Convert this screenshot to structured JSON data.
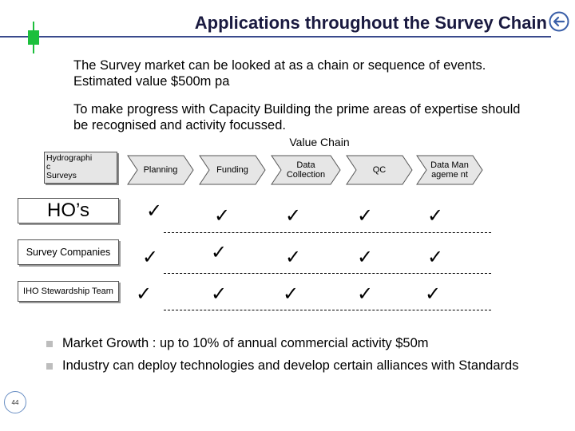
{
  "header": {
    "title": "Applications throughout the Survey Chain",
    "back_icon": "back-arrow-icon"
  },
  "intro": {
    "paragraph_1": "The Survey market can be looked at as a chain or sequence of events.  Estimated value $500m pa",
    "paragraph_2": "To make progress with Capacity Building the prime areas of expertise should be recognised and activity focussed."
  },
  "value_chain": {
    "label": "Value Chain",
    "source_box": "Hydrographi\nc\nSurveys",
    "stages": [
      "Planning",
      "Funding",
      "Data Collection",
      "QC",
      "Data Manageme nt"
    ]
  },
  "rows": [
    {
      "label": "HO’s",
      "ticks": "✓"
    },
    {
      "label": "Survey Companies",
      "ticks": "✓"
    },
    {
      "label": "IHO Stewardship Team",
      "ticks": "✓"
    }
  ],
  "bullets": [
    "Market Growth : up to 10% of annual commercial activity  $50m",
    "Industry can deploy technologies and develop certain alliances with Standards"
  ],
  "footer": {
    "page_number": "44"
  },
  "colors": {
    "title_rule": "#3a4a8c",
    "accent_green": "#1cbf3c",
    "chevron_fill": "#e6e6e6"
  }
}
